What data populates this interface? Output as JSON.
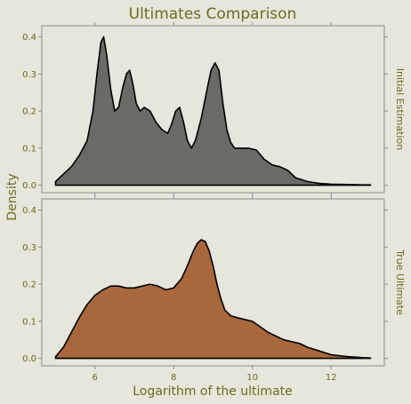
{
  "chart_data": {
    "type": "area",
    "title": "Ultimates Comparison",
    "xlabel": "Logarithm of the ultimate",
    "ylabel": "Density",
    "xlim": [
      4.65,
      13.35
    ],
    "ylim": [
      -0.02,
      0.43
    ],
    "x_ticks": [
      6,
      8,
      10,
      12
    ],
    "y_ticks": [
      0.0,
      0.1,
      0.2,
      0.3,
      0.4
    ],
    "y_tick_labels": [
      "0.0",
      "0.1",
      "0.2",
      "0.3",
      "0.4"
    ],
    "grid": false,
    "series": [
      {
        "name": "Initial Estimation",
        "color": "#6b6b66",
        "x": [
          5.0,
          5.2,
          5.4,
          5.6,
          5.8,
          5.95,
          6.05,
          6.15,
          6.22,
          6.3,
          6.4,
          6.5,
          6.6,
          6.7,
          6.8,
          6.88,
          6.95,
          7.05,
          7.15,
          7.25,
          7.4,
          7.55,
          7.7,
          7.85,
          7.95,
          8.05,
          8.15,
          8.25,
          8.35,
          8.45,
          8.55,
          8.7,
          8.85,
          8.95,
          9.05,
          9.15,
          9.25,
          9.35,
          9.45,
          9.55,
          9.7,
          9.9,
          10.1,
          10.3,
          10.5,
          10.7,
          10.9,
          11.1,
          11.4,
          11.7,
          12.0,
          12.4,
          12.8,
          13.0
        ],
        "y": [
          0.01,
          0.03,
          0.05,
          0.08,
          0.12,
          0.2,
          0.3,
          0.385,
          0.4,
          0.35,
          0.26,
          0.2,
          0.21,
          0.26,
          0.3,
          0.31,
          0.28,
          0.22,
          0.2,
          0.21,
          0.2,
          0.17,
          0.15,
          0.14,
          0.165,
          0.2,
          0.21,
          0.17,
          0.12,
          0.1,
          0.12,
          0.18,
          0.26,
          0.31,
          0.33,
          0.31,
          0.22,
          0.15,
          0.115,
          0.1,
          0.1,
          0.1,
          0.095,
          0.07,
          0.055,
          0.05,
          0.04,
          0.02,
          0.01,
          0.005,
          0.003,
          0.002,
          0.001,
          0.001
        ]
      },
      {
        "name": "True Ultimate",
        "color": "#a8683c",
        "x": [
          5.0,
          5.2,
          5.4,
          5.6,
          5.8,
          6.0,
          6.2,
          6.4,
          6.6,
          6.8,
          7.0,
          7.2,
          7.4,
          7.6,
          7.8,
          8.0,
          8.2,
          8.35,
          8.5,
          8.6,
          8.7,
          8.8,
          8.9,
          9.0,
          9.1,
          9.2,
          9.3,
          9.45,
          9.6,
          9.8,
          10.0,
          10.2,
          10.4,
          10.6,
          10.8,
          11.0,
          11.2,
          11.4,
          11.7,
          12.0,
          12.4,
          12.8,
          13.0
        ],
        "y": [
          0.005,
          0.03,
          0.07,
          0.11,
          0.145,
          0.17,
          0.185,
          0.195,
          0.195,
          0.19,
          0.19,
          0.195,
          0.2,
          0.195,
          0.185,
          0.19,
          0.215,
          0.25,
          0.29,
          0.31,
          0.32,
          0.315,
          0.29,
          0.25,
          0.2,
          0.16,
          0.13,
          0.115,
          0.11,
          0.105,
          0.1,
          0.085,
          0.07,
          0.06,
          0.05,
          0.045,
          0.04,
          0.03,
          0.02,
          0.01,
          0.005,
          0.002,
          0.001
        ]
      }
    ]
  }
}
